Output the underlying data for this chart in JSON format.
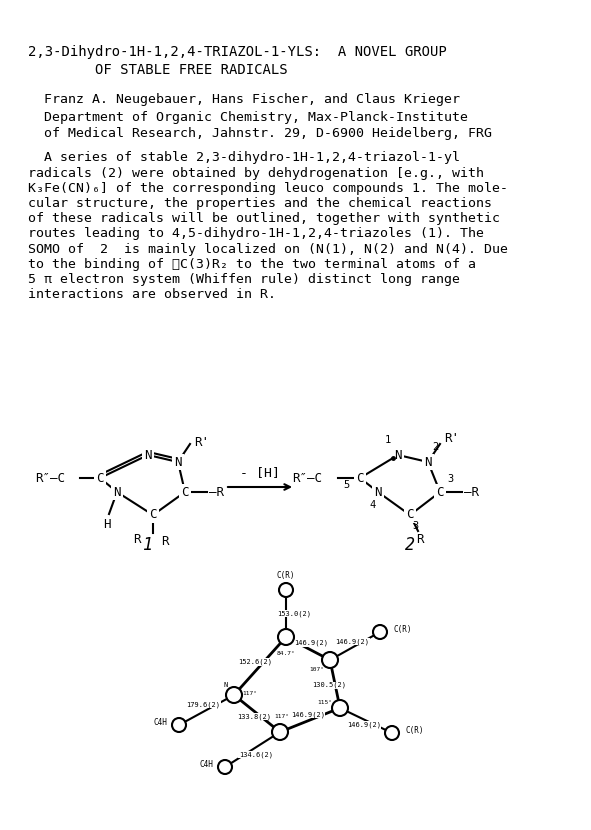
{
  "title_line1": "2,3-Dihydro-1H-1,2,4-TRIAZOL-1-YLS:  A NOVEL GROUP",
  "title_line2": "OF STABLE FREE RADICALS",
  "author_line": "  Franz A. Neugebauer, Hans Fischer, and Claus Krieger",
  "affil_line1": "  Department of Organic Chemistry, Max-Planck-Institute",
  "affil_line2": "  of Medical Research, Jahnstr. 29, D-6900 Heidelberg, FRG",
  "abstract_lines": [
    "  A series of stable 2,3-dihydro-1H-1,2,4-triazol-1-yl",
    "radicals (2) were obtained by dehydrogenation [e.g., with",
    "K₃Fe(CN)₆] of the corresponding leuco compounds 1. The mole-",
    "cular structure, the properties and the chemical reactions",
    "of these radicals will be outlined, together with synthetic",
    "routes leading to 4,5-dihydro-1H-1,2,4-triazoles (1). The",
    "SOMO of  2  is mainly localized on (N(1), N(2) and N(4). Due",
    "to the binding of ≫C(3)R₂ to the two terminal atoms of a",
    "5 π electron system (Whiffen rule) distinct long range",
    "interactions are observed in R."
  ],
  "bg_color": "#ffffff"
}
